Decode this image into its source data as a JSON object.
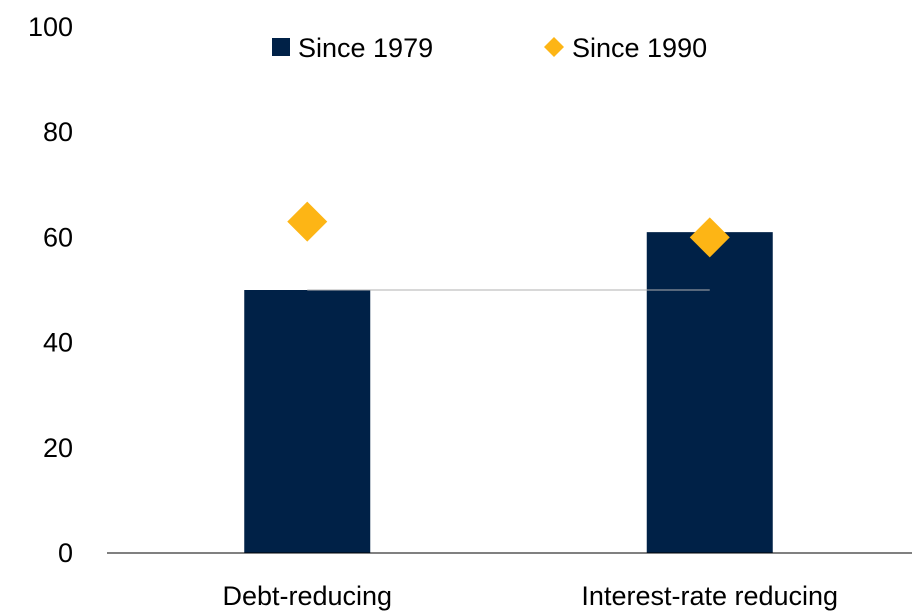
{
  "chart_data": {
    "type": "bar",
    "categories": [
      "Debt-reducing",
      "Interest-rate reducing"
    ],
    "series": [
      {
        "name": "Since 1979",
        "kind": "bar",
        "color": "#002147",
        "values": [
          50,
          61
        ]
      },
      {
        "name": "Since 1990",
        "kind": "marker",
        "marker": "diamond",
        "color": "#FDB515",
        "values": [
          63,
          60
        ]
      }
    ],
    "reference_line": {
      "value": 50,
      "color": "#b0b0b0"
    },
    "ylim": [
      0,
      100
    ],
    "yticks": [
      0,
      20,
      40,
      60,
      80,
      100
    ],
    "ytick_labels": [
      "0",
      "20",
      "40",
      "60",
      "80",
      "100"
    ],
    "grid": false,
    "legend_position": "top"
  }
}
